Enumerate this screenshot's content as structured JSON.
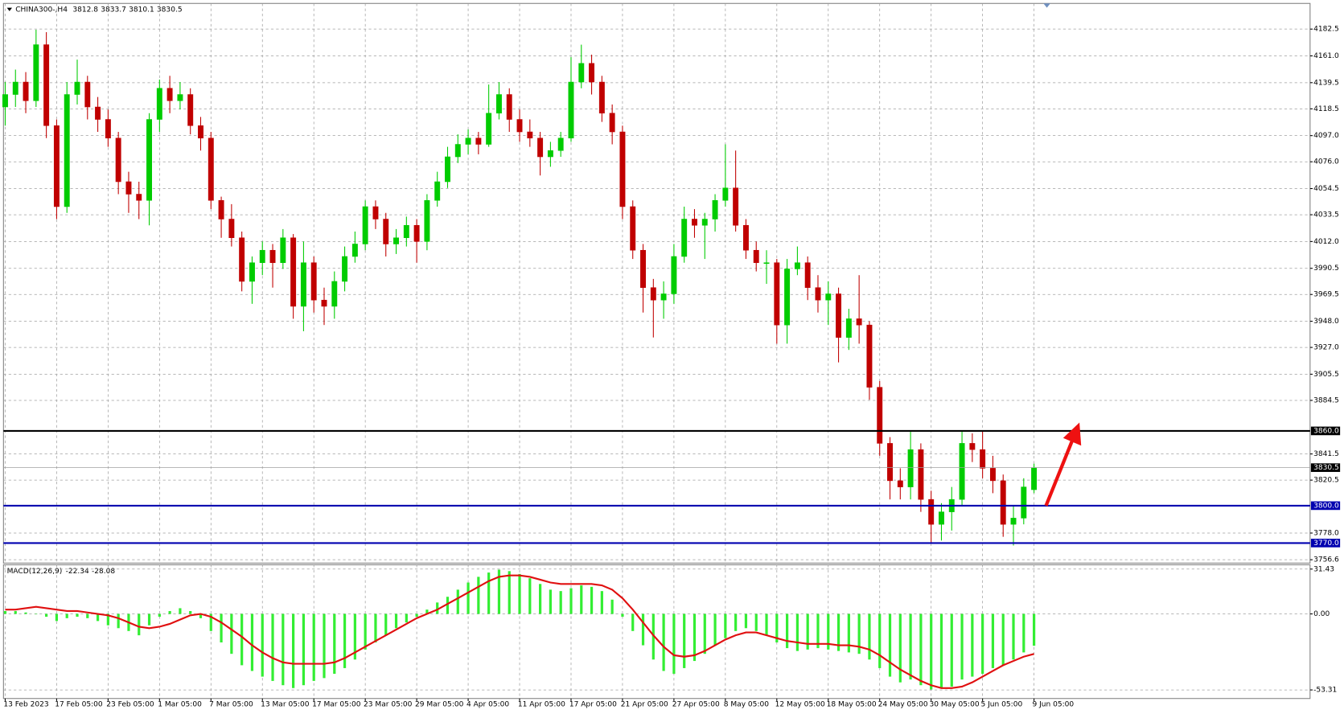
{
  "chart_data": [
    {
      "type": "candlestick",
      "title": "CHINA300-,H4",
      "up_color": "#00cc00",
      "down_color": "#c00000",
      "grid": true,
      "ylim": [
        3753.9,
        4203.1
      ],
      "yticks": [
        {
          "value": 4182.5,
          "label": "4182.5"
        },
        {
          "value": 4161.0,
          "label": "4161.0"
        },
        {
          "value": 4139.5,
          "label": "4139.5"
        },
        {
          "value": 4118.5,
          "label": "4118.5"
        },
        {
          "value": 4097.0,
          "label": "4097.0"
        },
        {
          "value": 4076.0,
          "label": "4076.0"
        },
        {
          "value": 4054.5,
          "label": "4054.5"
        },
        {
          "value": 4033.5,
          "label": "4033.5"
        },
        {
          "value": 4012.0,
          "label": "4012.0"
        },
        {
          "value": 3990.5,
          "label": "3990.5"
        },
        {
          "value": 3969.5,
          "label": "3969.5"
        },
        {
          "value": 3948.0,
          "label": "3948.0"
        },
        {
          "value": 3927.0,
          "label": "3927.0"
        },
        {
          "value": 3905.5,
          "label": "3905.5"
        },
        {
          "value": 3884.5,
          "label": "3884.5"
        },
        {
          "value": 3841.5,
          "label": "3841.5"
        },
        {
          "value": 3820.5,
          "label": "3820.5"
        },
        {
          "value": 3778.0,
          "label": "3778.0"
        },
        {
          "value": 3756.6,
          "label": "3756.6"
        }
      ],
      "hlines": [
        {
          "value": 3860,
          "label": "3860.0",
          "color": "#000000"
        },
        {
          "value": 3800,
          "label": "3800.0",
          "color": "#0000b0"
        },
        {
          "value": 3770,
          "label": "3770.0",
          "color": "#0000b0"
        }
      ],
      "categories": [
        "13 Feb 2023",
        null,
        null,
        null,
        null,
        "17 Feb 05:00",
        null,
        null,
        null,
        null,
        "23 Feb 05:00",
        null,
        null,
        null,
        null,
        "1 Mar 05:00",
        null,
        null,
        null,
        null,
        "7 Mar 05:00",
        null,
        null,
        null,
        null,
        "13 Mar 05:00",
        null,
        null,
        null,
        null,
        "17 Mar 05:00",
        null,
        null,
        null,
        null,
        "23 Mar 05:00",
        null,
        null,
        null,
        null,
        "29 Mar 05:00",
        null,
        null,
        null,
        null,
        "4 Apr 05:00",
        null,
        null,
        null,
        null,
        "11 Apr 05:00",
        null,
        null,
        null,
        null,
        "17 Apr 05:00",
        null,
        null,
        null,
        null,
        "21 Apr 05:00",
        null,
        null,
        null,
        null,
        "27 Apr 05:00",
        null,
        null,
        null,
        null,
        "8 May 05:00",
        null,
        null,
        null,
        null,
        "12 May 05:00",
        null,
        null,
        null,
        null,
        "18 May 05:00",
        null,
        null,
        null,
        null,
        "24 May 05:00",
        null,
        null,
        null,
        null,
        "30 May 05:00",
        null,
        null,
        null,
        null,
        "5 Jun 05:00",
        null,
        null,
        null,
        null,
        "9 Jun 05:00"
      ],
      "ohlc": [
        [
          4120,
          4140,
          4105,
          4130
        ],
        [
          4130,
          4150,
          4120,
          4140
        ],
        [
          4140,
          4148,
          4115,
          4125
        ],
        [
          4125,
          4182,
          4120,
          4170
        ],
        [
          4170,
          4180,
          4095,
          4105
        ],
        [
          4105,
          4110,
          4030,
          4040
        ],
        [
          4040,
          4140,
          4035,
          4130
        ],
        [
          4130,
          4158,
          4122,
          4140
        ],
        [
          4140,
          4145,
          4110,
          4120
        ],
        [
          4120,
          4128,
          4100,
          4110
        ],
        [
          4110,
          4118,
          4088,
          4095
        ],
        [
          4095,
          4100,
          4050,
          4060
        ],
        [
          4060,
          4068,
          4035,
          4050
        ],
        [
          4050,
          4060,
          4030,
          4045
        ],
        [
          4045,
          4115,
          4025,
          4110
        ],
        [
          4110,
          4142,
          4100,
          4135
        ],
        [
          4135,
          4145,
          4115,
          4125
        ],
        [
          4125,
          4140,
          4118,
          4130
        ],
        [
          4130,
          4135,
          4098,
          4105
        ],
        [
          4105,
          4112,
          4085,
          4095
        ],
        [
          4095,
          4100,
          4038,
          4045
        ],
        [
          4045,
          4048,
          4015,
          4030
        ],
        [
          4030,
          4042,
          4008,
          4015
        ],
        [
          4015,
          4020,
          3972,
          3980
        ],
        [
          3980,
          4000,
          3962,
          3995
        ],
        [
          3995,
          4012,
          3985,
          4005
        ],
        [
          4005,
          4010,
          3975,
          3995
        ],
        [
          3995,
          4022,
          3990,
          4015
        ],
        [
          4015,
          4018,
          3950,
          3960
        ],
        [
          3960,
          4012,
          3940,
          3995
        ],
        [
          3995,
          4000,
          3955,
          3965
        ],
        [
          3965,
          3975,
          3945,
          3960
        ],
        [
          3960,
          3988,
          3950,
          3980
        ],
        [
          3980,
          4008,
          3972,
          4000
        ],
        [
          4000,
          4020,
          3995,
          4010
        ],
        [
          4010,
          4045,
          4005,
          4040
        ],
        [
          4040,
          4045,
          4022,
          4030
        ],
        [
          4030,
          4035,
          4000,
          4010
        ],
        [
          4010,
          4022,
          4002,
          4015
        ],
        [
          4015,
          4032,
          4008,
          4025
        ],
        [
          4025,
          4030,
          3995,
          4012
        ],
        [
          4012,
          4050,
          4005,
          4045
        ],
        [
          4045,
          4068,
          4040,
          4060
        ],
        [
          4060,
          4088,
          4055,
          4080
        ],
        [
          4080,
          4098,
          4075,
          4090
        ],
        [
          4090,
          4102,
          4082,
          4095
        ],
        [
          4095,
          4100,
          4082,
          4090
        ],
        [
          4090,
          4138,
          4088,
          4115
        ],
        [
          4115,
          4140,
          4110,
          4130
        ],
        [
          4130,
          4135,
          4100,
          4110
        ],
        [
          4110,
          4118,
          4092,
          4100
        ],
        [
          4100,
          4110,
          4088,
          4095
        ],
        [
          4095,
          4100,
          4065,
          4080
        ],
        [
          4080,
          4092,
          4072,
          4085
        ],
        [
          4085,
          4100,
          4080,
          4095
        ],
        [
          4095,
          4160,
          4092,
          4140
        ],
        [
          4140,
          4170,
          4135,
          4155
        ],
        [
          4155,
          4162,
          4130,
          4140
        ],
        [
          4140,
          4145,
          4108,
          4115
        ],
        [
          4115,
          4122,
          4090,
          4100
        ],
        [
          4100,
          4105,
          4030,
          4040
        ],
        [
          4040,
          4045,
          3998,
          4005
        ],
        [
          4005,
          4010,
          3955,
          3975
        ],
        [
          3975,
          3982,
          3935,
          3965
        ],
        [
          3965,
          3980,
          3950,
          3970
        ],
        [
          3970,
          4010,
          3962,
          4000
        ],
        [
          4000,
          4040,
          3995,
          4030
        ],
        [
          4030,
          4038,
          4015,
          4025
        ],
        [
          4025,
          4035,
          3998,
          4030
        ],
        [
          4030,
          4050,
          4020,
          4045
        ],
        [
          4045,
          4090,
          4040,
          4055
        ],
        [
          4055,
          4085,
          4020,
          4025
        ],
        [
          4025,
          4030,
          3998,
          4005
        ],
        [
          4005,
          4012,
          3988,
          3995
        ],
        [
          3995,
          4005,
          3978,
          3995
        ],
        [
          3995,
          3998,
          3930,
          3945
        ],
        [
          3945,
          3998,
          3930,
          3990
        ],
        [
          3990,
          4008,
          3985,
          3995
        ],
        [
          3995,
          4000,
          3965,
          3975
        ],
        [
          3975,
          3985,
          3955,
          3965
        ],
        [
          3965,
          3980,
          3945,
          3970
        ],
        [
          3970,
          3975,
          3915,
          3935
        ],
        [
          3935,
          3958,
          3925,
          3950
        ],
        [
          3950,
          3985,
          3930,
          3945
        ],
        [
          3945,
          3948,
          3885,
          3895
        ],
        [
          3895,
          3900,
          3840,
          3850
        ],
        [
          3850,
          3855,
          3805,
          3820
        ],
        [
          3820,
          3830,
          3805,
          3815
        ],
        [
          3815,
          3860,
          3805,
          3845
        ],
        [
          3845,
          3850,
          3795,
          3805
        ],
        [
          3805,
          3812,
          3770,
          3785
        ],
        [
          3785,
          3802,
          3772,
          3795
        ],
        [
          3795,
          3815,
          3780,
          3805
        ],
        [
          3805,
          3860,
          3800,
          3850
        ],
        [
          3850,
          3858,
          3835,
          3845
        ],
        [
          3845,
          3860,
          3822,
          3830
        ],
        [
          3830,
          3840,
          3810,
          3820
        ],
        [
          3820,
          3825,
          3775,
          3785
        ],
        [
          3785,
          3800,
          3768,
          3790
        ],
        [
          3790,
          3822,
          3785,
          3815
        ],
        [
          3812.8,
          3833.7,
          3810.1,
          3830.5
        ]
      ]
    },
    {
      "type": "macd",
      "title": "MACD(12,26,9)",
      "grid": true,
      "ylim": [
        -59.32,
        34.43
      ],
      "yticks": [
        31.43,
        {
          "value": 0,
          "label": "0.00"
        },
        -53.31
      ],
      "series": [
        {
          "color": "#33ee33",
          "values": [
            2,
            2,
            1,
            0,
            -2,
            -5,
            -3,
            -2,
            -3,
            -5,
            -8,
            -10,
            -12,
            -15,
            -8,
            -2,
            2,
            4,
            2,
            -3,
            -12,
            -20,
            -28,
            -36,
            -40,
            -44,
            -47,
            -50,
            -52,
            -50,
            -47,
            -45,
            -42,
            -38,
            -32,
            -25,
            -20,
            -15,
            -10,
            -6,
            -2,
            3,
            8,
            12,
            17,
            22,
            26,
            29,
            31,
            30,
            28,
            25,
            21,
            17,
            16,
            18,
            20,
            19,
            16,
            10,
            -2,
            -12,
            -22,
            -32,
            -40,
            -42,
            -38,
            -33,
            -28,
            -22,
            -17,
            -12,
            -10,
            -12,
            -15,
            -20,
            -24,
            -26,
            -25,
            -24,
            -25,
            -26,
            -27,
            -28,
            -32,
            -38,
            -44,
            -48,
            -46,
            -50,
            -53,
            -52,
            -51,
            -46,
            -44,
            -42,
            -38,
            -36,
            -32,
            -27,
            -22.34
          ]
        },
        {
          "color": "#e01010",
          "values": [
            3,
            3,
            4,
            5,
            4,
            3,
            2,
            2,
            1,
            0,
            -1,
            -3,
            -6,
            -9,
            -10,
            -9,
            -7,
            -4,
            -1,
            0,
            -2,
            -6,
            -11,
            -16,
            -22,
            -27,
            -31,
            -34,
            -35,
            -35,
            -35,
            -35,
            -34,
            -31,
            -27,
            -23,
            -19,
            -15,
            -11,
            -7,
            -3,
            0,
            3,
            7,
            11,
            15,
            19,
            23,
            26,
            27,
            27,
            26,
            24,
            22,
            21,
            21,
            21,
            21,
            20,
            17,
            11,
            3,
            -6,
            -15,
            -23,
            -29,
            -30,
            -29,
            -26,
            -22,
            -18,
            -15,
            -13,
            -13,
            -15,
            -17,
            -19,
            -20,
            -21,
            -21,
            -21,
            -22,
            -22,
            -23,
            -25,
            -29,
            -34,
            -39,
            -43,
            -47,
            -50,
            -52,
            -52,
            -51,
            -48,
            -44,
            -40,
            -36,
            -33,
            -30,
            -28.08
          ]
        }
      ]
    }
  ]
}
